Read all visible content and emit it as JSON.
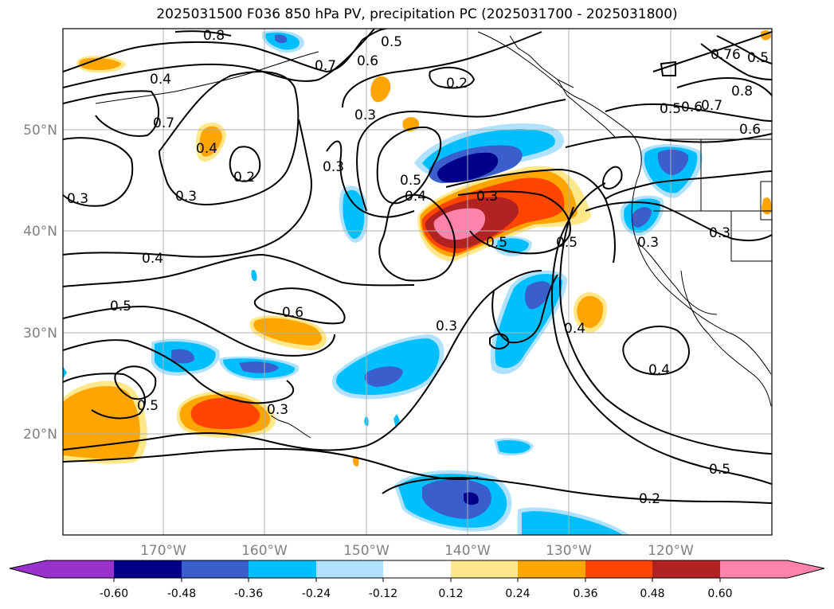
{
  "title": "2025031500 F036 850 hPa PV, precipitation PC (2025031700 - 2025031800)",
  "map": {
    "lon_labels": [
      "170°W",
      "160°W",
      "150°W",
      "140°W",
      "130°W",
      "120°W"
    ],
    "lat_labels": [
      "50°N",
      "40°N",
      "30°N",
      "20°N"
    ],
    "contour_labels": [
      "0.8",
      "0.7",
      "0.6",
      "0.5",
      "0.2",
      "0.3",
      "0.4",
      "0.7",
      "0.4",
      "0.2",
      "0.3",
      "0.3",
      "0.5",
      "0.4",
      "0.3",
      "0.5",
      "0.5",
      "0.4",
      "0.5",
      "0.6",
      "0.3",
      "0.4",
      "0.4",
      "0.5",
      "0.3",
      "0.2",
      "0.5",
      "0.3",
      "0.6",
      "0.8",
      "0.7",
      "0.5",
      "0.6",
      "0.76",
      "0.5",
      "0.3",
      "0.3"
    ]
  },
  "colorbar": {
    "tick_labels": [
      "-0.60",
      "-0.48",
      "-0.36",
      "-0.24",
      "-0.12",
      "0.12",
      "0.24",
      "0.36",
      "0.48",
      "0.60"
    ],
    "colors": [
      "#9932cc",
      "#00008b",
      "#3a5fcd",
      "#00bfff",
      "#b0e2ff",
      "#ffffff",
      "#ffe78a",
      "#ffa500",
      "#ff4500",
      "#b22222",
      "#ff82ab"
    ]
  }
}
